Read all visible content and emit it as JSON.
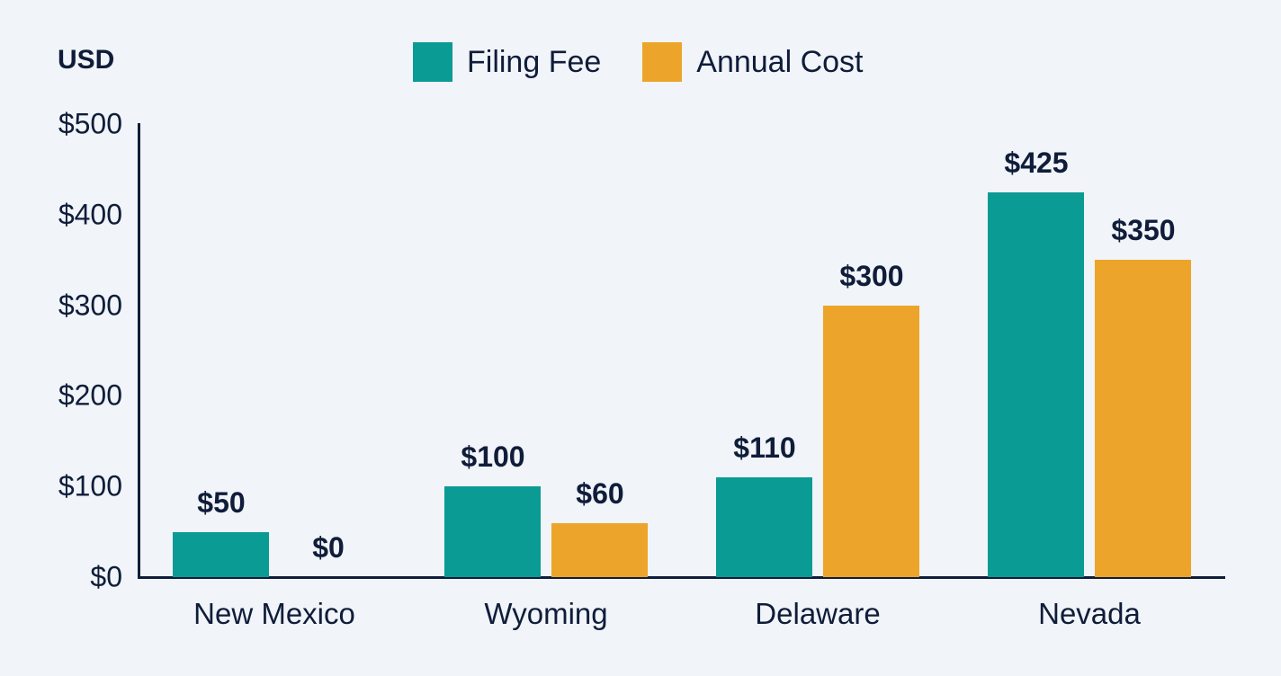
{
  "chart_data": {
    "type": "bar",
    "title": "",
    "ylabel": "USD",
    "xlabel": "",
    "categories": [
      "New Mexico",
      "Wyoming",
      "Delaware",
      "Nevada"
    ],
    "series": [
      {
        "name": "Filing Fee",
        "color": "#0a9b94",
        "values": [
          50,
          100,
          110,
          425
        ],
        "labels": [
          "$50",
          "$100",
          "$110",
          "$425"
        ]
      },
      {
        "name": "Annual Cost",
        "color": "#eca52a",
        "values": [
          0,
          60,
          300,
          350
        ],
        "labels": [
          "$0",
          "$60",
          "$300",
          "$350"
        ]
      }
    ],
    "ylim": [
      0,
      500
    ],
    "yticks": [
      0,
      100,
      200,
      300,
      400,
      500
    ],
    "ytick_labels": [
      "$0",
      "$100",
      "$200",
      "$300",
      "$400",
      "$500"
    ],
    "grid": false,
    "legend_position": "top-center",
    "data_labels": true
  },
  "unit_label": "USD",
  "legend": [
    {
      "label": "Filing Fee",
      "color": "#0a9b94"
    },
    {
      "label": "Annual Cost",
      "color": "#eca52a"
    }
  ],
  "yticks": [
    {
      "label": "$0",
      "value": 0
    },
    {
      "label": "$100",
      "value": 100
    },
    {
      "label": "$200",
      "value": 200
    },
    {
      "label": "$300",
      "value": 300
    },
    {
      "label": "$400",
      "value": 400
    },
    {
      "label": "$500",
      "value": 500
    }
  ],
  "groups": [
    {
      "category": "New Mexico",
      "filing": {
        "value": 50,
        "label": "$50"
      },
      "annual": {
        "value": 0,
        "label": "$0"
      }
    },
    {
      "category": "Wyoming",
      "filing": {
        "value": 100,
        "label": "$100"
      },
      "annual": {
        "value": 60,
        "label": "$60"
      }
    },
    {
      "category": "Delaware",
      "filing": {
        "value": 110,
        "label": "$110"
      },
      "annual": {
        "value": 300,
        "label": "$300"
      }
    },
    {
      "category": "Nevada",
      "filing": {
        "value": 425,
        "label": "$425"
      },
      "annual": {
        "value": 350,
        "label": "$350"
      }
    }
  ]
}
